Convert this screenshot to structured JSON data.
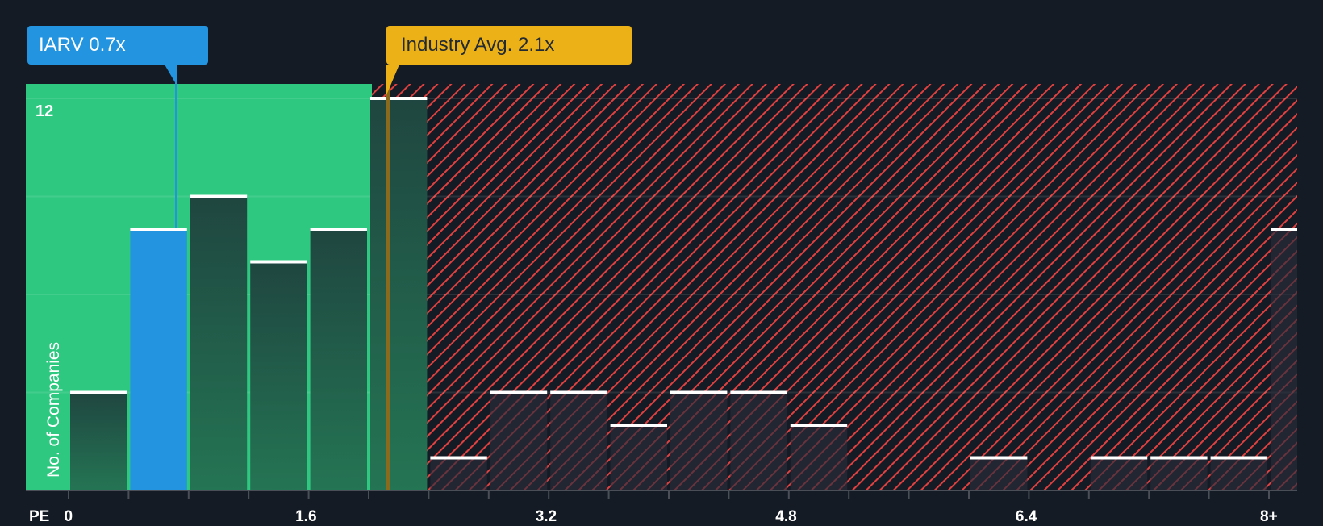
{
  "callouts": {
    "company": {
      "label": "IARV 0.7x",
      "value": 0.7,
      "color": "#2394e0"
    },
    "industry": {
      "label": "Industry Avg. 2.1x",
      "value": 2.1,
      "color": "#ecb117"
    }
  },
  "axes": {
    "x_title": "PE",
    "y_title": "No. of Companies",
    "y_top_label": "12",
    "x_ticks": [
      "0",
      "1.6",
      "3.2",
      "4.8",
      "6.4",
      "8+"
    ]
  },
  "colors": {
    "background": "#151b24",
    "undervalued_zone": "#2ec880",
    "overvalued_hatch": "#e0403f",
    "company_bar": "#2394e0",
    "bar_dark": "#214a42"
  },
  "chart_data": {
    "type": "bar",
    "title": "",
    "xlabel": "PE",
    "ylabel": "No. of Companies",
    "ylim": [
      0,
      12.4
    ],
    "y_gridlines": [
      0,
      3,
      6,
      9,
      12
    ],
    "x_tick_labels": [
      "0",
      "1.6",
      "3.2",
      "4.8",
      "6.4",
      "8+"
    ],
    "bin_width": 0.4,
    "categories": [
      "0-0.4",
      "0.4-0.8",
      "0.8-1.2",
      "1.2-1.6",
      "1.6-2.0",
      "2.0-2.4",
      "2.4-2.8",
      "2.8-3.2",
      "3.2-3.6",
      "3.6-4.0",
      "4.0-4.4",
      "4.4-4.8",
      "4.8-5.2",
      "5.2-5.6",
      "5.6-6.0",
      "6.0-6.4",
      "6.4-6.8",
      "6.8-7.2",
      "7.2-7.6",
      "7.6-8.0",
      "8+"
    ],
    "values": [
      3,
      8,
      9,
      7,
      8,
      12,
      1,
      3,
      3,
      2,
      3,
      3,
      2,
      0,
      0,
      1,
      0,
      1,
      1,
      1,
      8
    ],
    "highlight_bin": 1,
    "company": {
      "name": "IARV",
      "pe": 0.7
    },
    "industry_avg": 2.1,
    "legend": []
  }
}
